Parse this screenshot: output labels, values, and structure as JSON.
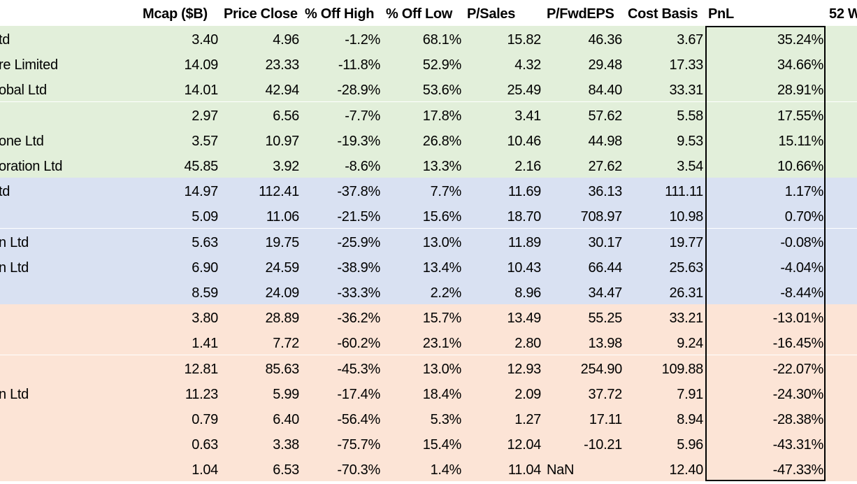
{
  "headers": {
    "mcap": "Mcap ($B)",
    "price": "Price Close",
    "off_high": "% Off High",
    "off_low": "% Off Low",
    "psales": "P/Sales",
    "pfwdeps": "P/FwdEPS",
    "cost": "Cost Basis",
    "pnl": "PnL",
    "w52": "52 W"
  },
  "colors": {
    "green_group": "#e2efda",
    "blue_group": "#d9e1f2",
    "red_group": "#fce4d6"
  },
  "rows": [
    {
      "group": "green",
      "name": "td",
      "mcap": "3.40",
      "price": "4.96",
      "off_high": "-1.2%",
      "off_low": "68.1%",
      "psales": "15.82",
      "pfwdeps": "46.36",
      "cost": "3.67",
      "pnl": "35.24%"
    },
    {
      "group": "green",
      "name": "re Limited",
      "mcap": "14.09",
      "price": "23.33",
      "off_high": "-11.8%",
      "off_low": "52.9%",
      "psales": "4.32",
      "pfwdeps": "29.48",
      "cost": "17.33",
      "pnl": "34.66%"
    },
    {
      "group": "green",
      "name": "obal Ltd",
      "mcap": "14.01",
      "price": "42.94",
      "off_high": "-28.9%",
      "off_low": "53.6%",
      "psales": "25.49",
      "pfwdeps": "84.40",
      "cost": "33.31",
      "pnl": "28.91%"
    },
    {
      "group": "green",
      "name": "",
      "mcap": "2.97",
      "price": "6.56",
      "off_high": "-7.7%",
      "off_low": "17.8%",
      "psales": "3.41",
      "pfwdeps": "57.62",
      "cost": "5.58",
      "pnl": "17.55%"
    },
    {
      "group": "green",
      "name": "one Ltd",
      "mcap": "3.57",
      "price": "10.97",
      "off_high": "-19.3%",
      "off_low": "26.8%",
      "psales": "10.46",
      "pfwdeps": "44.98",
      "cost": "9.53",
      "pnl": "15.11%"
    },
    {
      "group": "green",
      "name": "oration Ltd",
      "mcap": "45.85",
      "price": "3.92",
      "off_high": "-8.6%",
      "off_low": "13.3%",
      "psales": "2.16",
      "pfwdeps": "27.62",
      "cost": "3.54",
      "pnl": "10.66%"
    },
    {
      "group": "blue",
      "name": "td",
      "mcap": "14.97",
      "price": "112.41",
      "off_high": "-37.8%",
      "off_low": "7.7%",
      "psales": "11.69",
      "pfwdeps": "36.13",
      "cost": "111.11",
      "pnl": "1.17%"
    },
    {
      "group": "blue",
      "name": "",
      "mcap": "5.09",
      "price": "11.06",
      "off_high": "-21.5%",
      "off_low": "15.6%",
      "psales": "18.70",
      "pfwdeps": "708.97",
      "cost": "10.98",
      "pnl": "0.70%"
    },
    {
      "group": "blue",
      "name": "n Ltd",
      "mcap": "5.63",
      "price": "19.75",
      "off_high": "-25.9%",
      "off_low": "13.0%",
      "psales": "11.89",
      "pfwdeps": "30.17",
      "cost": "19.77",
      "pnl": "-0.08%"
    },
    {
      "group": "blue",
      "name": "n Ltd",
      "mcap": "6.90",
      "price": "24.59",
      "off_high": "-38.9%",
      "off_low": "13.4%",
      "psales": "10.43",
      "pfwdeps": "66.44",
      "cost": "25.63",
      "pnl": "-4.04%"
    },
    {
      "group": "blue",
      "name": "",
      "mcap": "8.59",
      "price": "24.09",
      "off_high": "-33.3%",
      "off_low": "2.2%",
      "psales": "8.96",
      "pfwdeps": "34.47",
      "cost": "26.31",
      "pnl": "-8.44%"
    },
    {
      "group": "red",
      "name": "",
      "mcap": "3.80",
      "price": "28.89",
      "off_high": "-36.2%",
      "off_low": "15.7%",
      "psales": "13.49",
      "pfwdeps": "55.25",
      "cost": "33.21",
      "pnl": "-13.01%"
    },
    {
      "group": "red",
      "name": "",
      "mcap": "1.41",
      "price": "7.72",
      "off_high": "-60.2%",
      "off_low": "23.1%",
      "psales": "2.80",
      "pfwdeps": "13.98",
      "cost": "9.24",
      "pnl": "-16.45%"
    },
    {
      "group": "red",
      "name": "",
      "mcap": "12.81",
      "price": "85.63",
      "off_high": "-45.3%",
      "off_low": "13.0%",
      "psales": "12.93",
      "pfwdeps": "254.90",
      "cost": "109.88",
      "pnl": "-22.07%"
    },
    {
      "group": "red",
      "name": "n Ltd",
      "mcap": "11.23",
      "price": "5.99",
      "off_high": "-17.4%",
      "off_low": "18.4%",
      "psales": "2.09",
      "pfwdeps": "37.72",
      "cost": "7.91",
      "pnl": "-24.30%"
    },
    {
      "group": "red",
      "name": "",
      "mcap": "0.79",
      "price": "6.40",
      "off_high": "-56.4%",
      "off_low": "5.3%",
      "psales": "1.27",
      "pfwdeps": "17.11",
      "cost": "8.94",
      "pnl": "-28.38%"
    },
    {
      "group": "red",
      "name": "",
      "mcap": "0.63",
      "price": "3.38",
      "off_high": "-75.7%",
      "off_low": "15.4%",
      "psales": "12.04",
      "pfwdeps": "-10.21",
      "cost": "5.96",
      "pnl": "-43.31%"
    },
    {
      "group": "red",
      "name": "",
      "mcap": "1.04",
      "price": "6.53",
      "off_high": "-70.3%",
      "off_low": "1.4%",
      "psales": "11.04",
      "pfwdeps": "NaN",
      "pfwdeps_left": true,
      "cost": "12.40",
      "pnl": "-47.33%"
    }
  ]
}
